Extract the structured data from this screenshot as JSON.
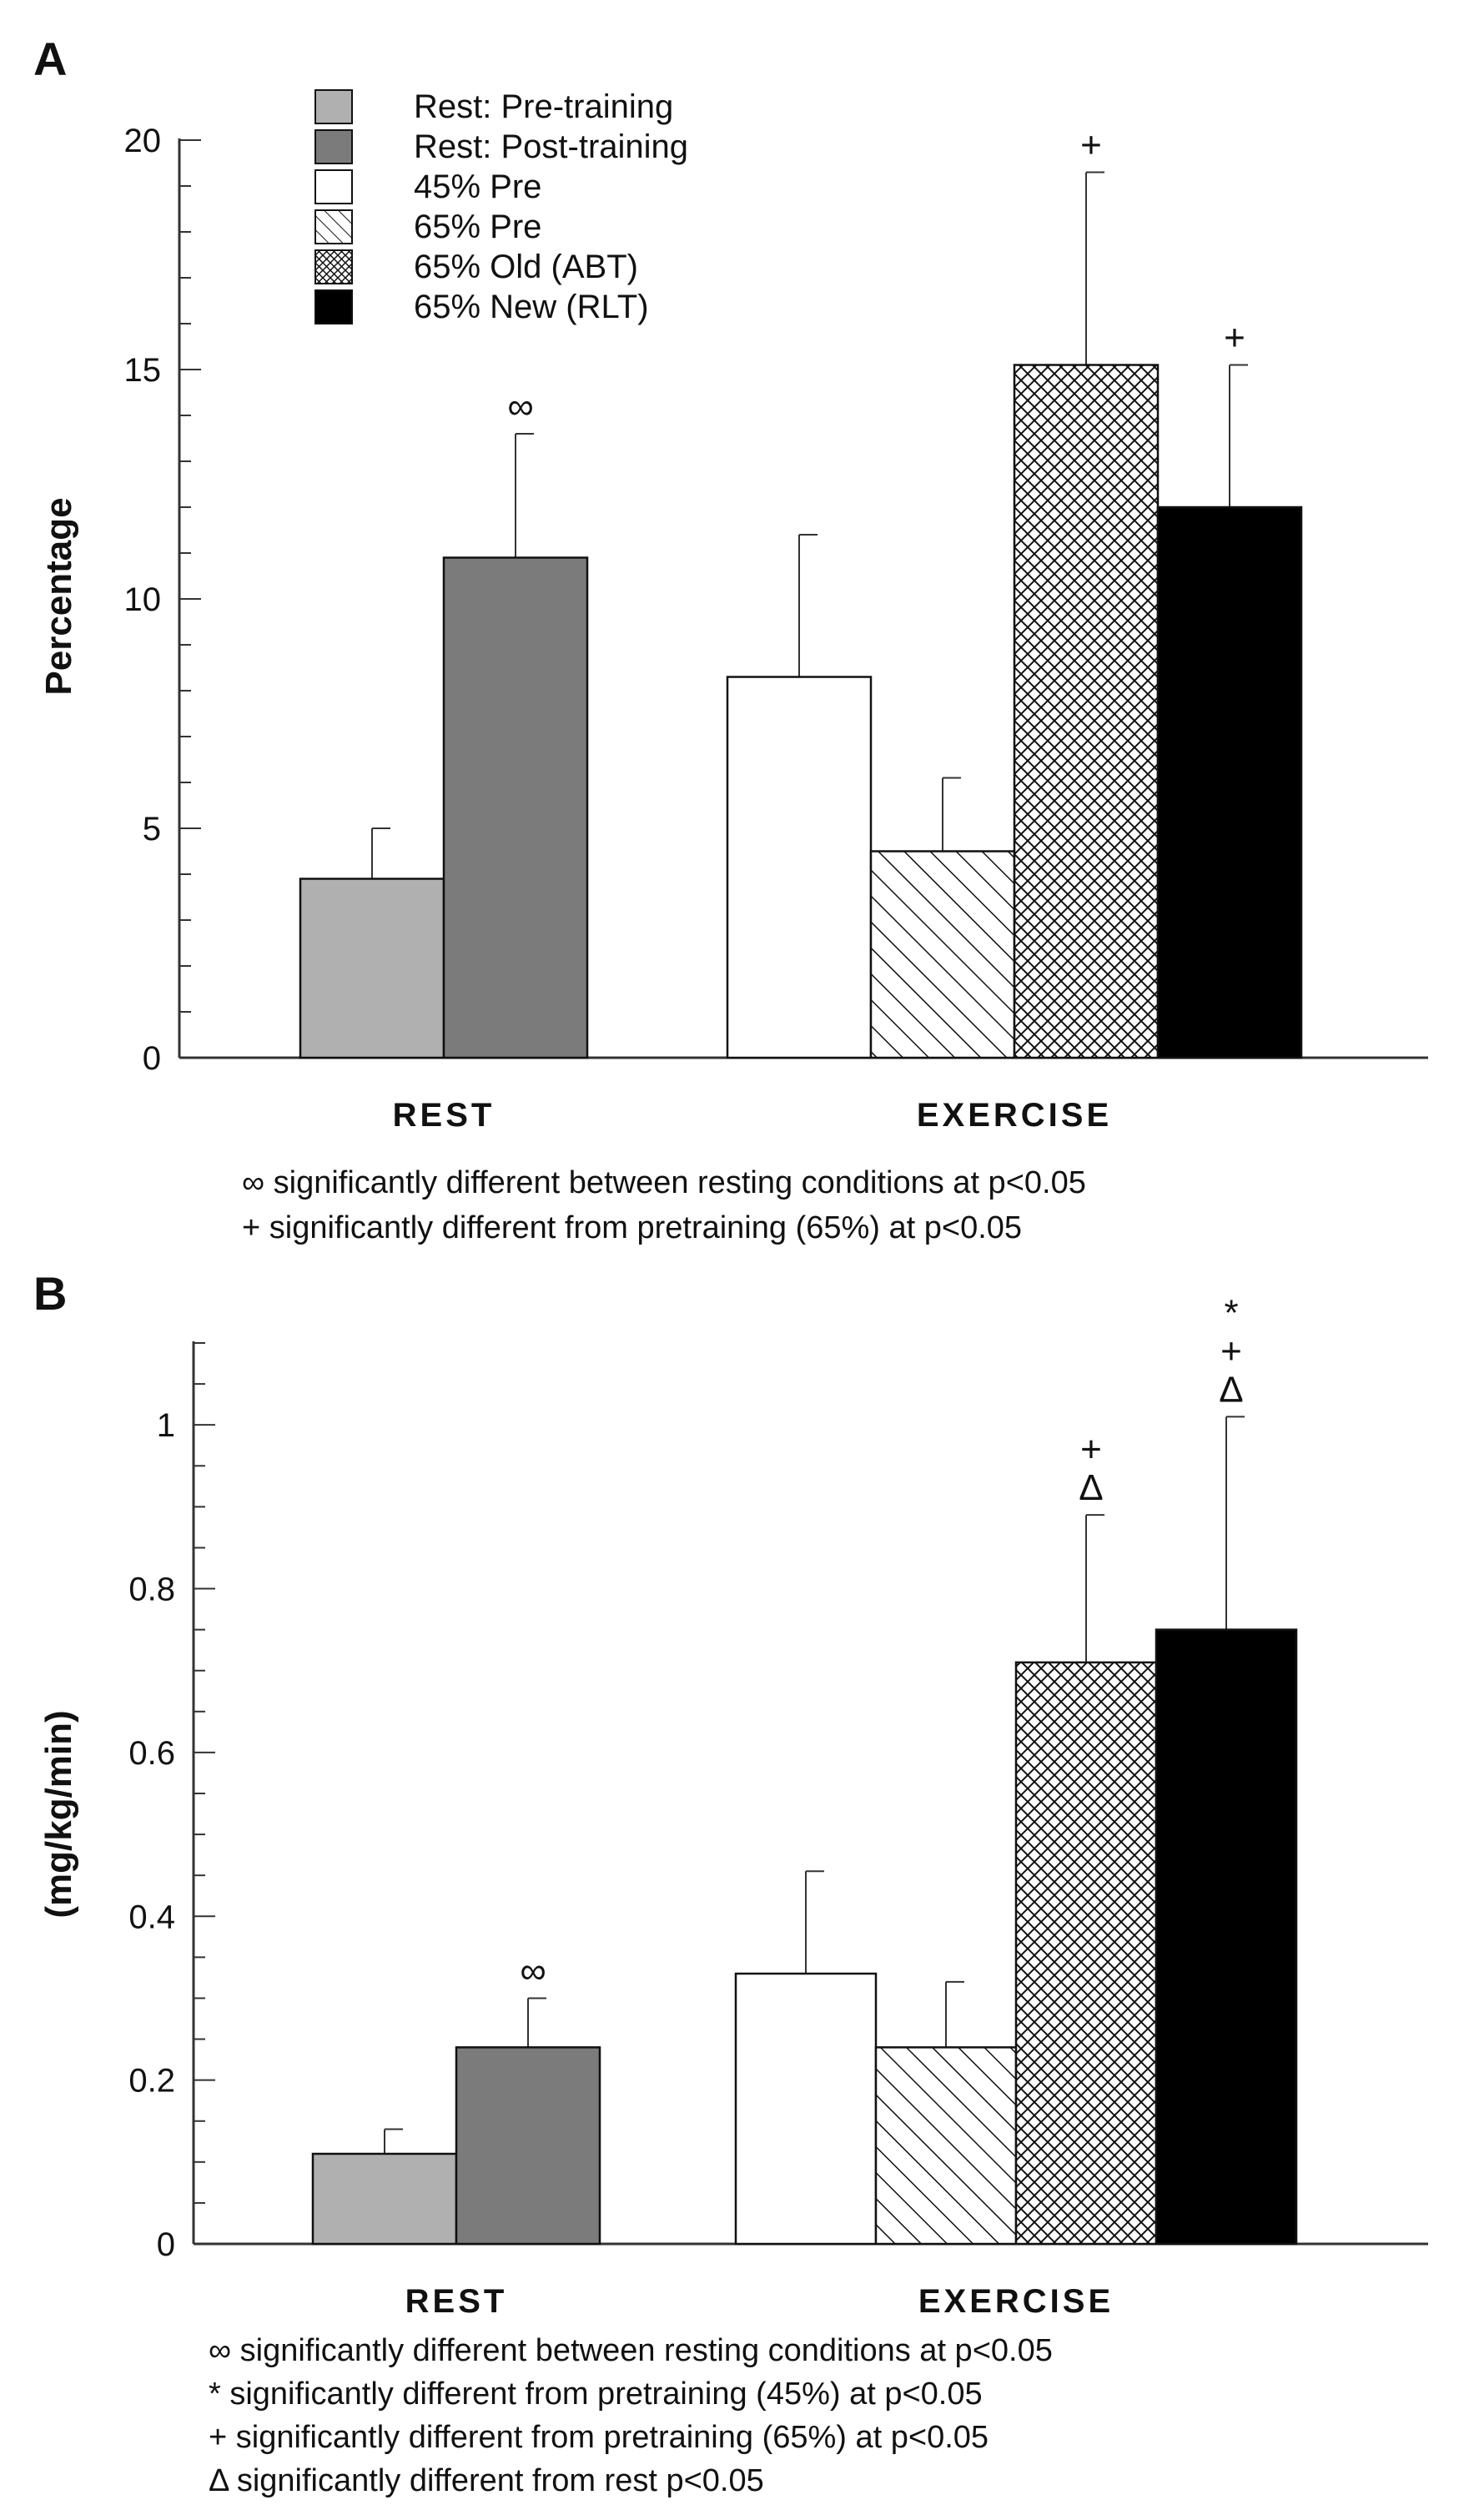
{
  "colors": {
    "rest_pre": "#b0b0b0",
    "rest_post": "#7b7b7b",
    "pre45": "#ffffff",
    "new_rlt": "#000000",
    "axis": "#333333"
  },
  "legend": {
    "entries": [
      {
        "label": "Rest: Pre-training",
        "fill": "solid-light-gray"
      },
      {
        "label": "Rest: Post-training",
        "fill": "solid-dark-gray"
      },
      {
        "label": "45% Pre",
        "fill": "white"
      },
      {
        "label": "65% Pre",
        "fill": "diagonal-hatch"
      },
      {
        "label": "65% Old (ABT)",
        "fill": "cross-hatch"
      },
      {
        "label": "65% New (RLT)",
        "fill": "solid-black"
      }
    ]
  },
  "chart_data": [
    {
      "panel": "A",
      "type": "bar",
      "ylabel": "Percentage",
      "ylim": [
        0,
        20
      ],
      "yticks": [
        "0",
        "5",
        "10",
        "15",
        "20"
      ],
      "groups": [
        {
          "label": "REST",
          "bars": [
            {
              "series": "Rest: Pre-training",
              "value": 3.9,
              "error": 1.1,
              "mark": ""
            },
            {
              "series": "Rest: Post-training",
              "value": 10.9,
              "error": 2.7,
              "mark": "∞"
            }
          ]
        },
        {
          "label": "EXERCISE",
          "bars": [
            {
              "series": "45% Pre",
              "value": 8.3,
              "error": 3.1,
              "mark": ""
            },
            {
              "series": "65% Pre",
              "value": 4.5,
              "error": 1.6,
              "mark": ""
            },
            {
              "series": "65% Old (ABT)",
              "value": 15.1,
              "error": 4.2,
              "mark": "+"
            },
            {
              "series": "65% New (RLT)",
              "value": 12.0,
              "error": 3.1,
              "mark": "+"
            }
          ]
        }
      ],
      "footnotes": [
        "∞ significantly different between resting conditions at p<0.05",
        "+ significantly different from pretraining (65%) at p<0.05"
      ]
    },
    {
      "panel": "B",
      "type": "bar",
      "ylabel": "(mg/kg/min)",
      "ylim": [
        0,
        1.1
      ],
      "yticks": [
        "0",
        "0.2",
        "0.4",
        "0.6",
        "0.8",
        "1"
      ],
      "groups": [
        {
          "label": "REST",
          "bars": [
            {
              "series": "Rest: Pre-training",
              "value": 0.11,
              "error": 0.03,
              "mark": ""
            },
            {
              "series": "Rest: Post-training",
              "value": 0.24,
              "error": 0.06,
              "mark": "∞"
            }
          ]
        },
        {
          "label": "EXERCISE",
          "bars": [
            {
              "series": "45% Pre",
              "value": 0.33,
              "error": 0.125,
              "mark": ""
            },
            {
              "series": "65% Pre",
              "value": 0.24,
              "error": 0.08,
              "mark": ""
            },
            {
              "series": "65% Old (ABT)",
              "value": 0.71,
              "error": 0.18,
              "mark": "+\nΔ"
            },
            {
              "series": "65% New (RLT)",
              "value": 0.75,
              "error": 0.26,
              "mark": "*\n+\nΔ"
            }
          ]
        }
      ],
      "footnotes": [
        "∞ significantly different between resting conditions at p<0.05",
        "* significantly different from pretraining (45%) at p<0.05",
        "+ significantly different from pretraining (65%) at p<0.05",
        "Δ significantly different from rest p<0.05"
      ]
    }
  ]
}
